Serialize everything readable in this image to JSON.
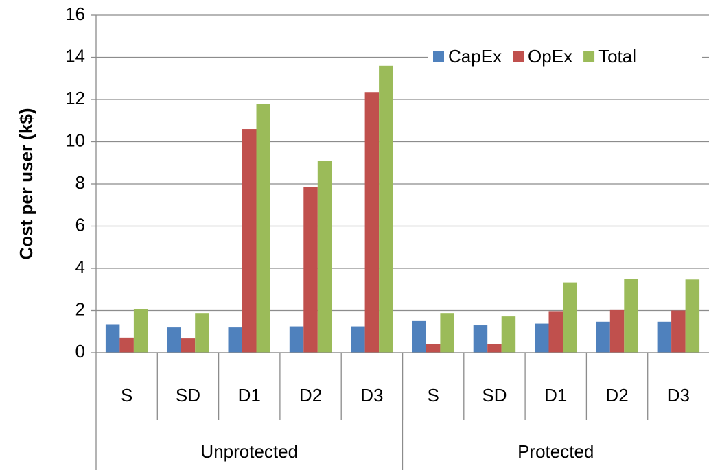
{
  "chart_data": {
    "type": "bar",
    "y_label": "Cost per user (k$)",
    "groups": [
      {
        "name": "Unprotected",
        "span": 5
      },
      {
        "name": "Protected",
        "span": 5
      }
    ],
    "categories": [
      "S",
      "SD",
      "D1",
      "D2",
      "D3",
      "S",
      "SD",
      "D1",
      "D2",
      "D3"
    ],
    "series": [
      {
        "name": "CapEx",
        "color": "#4f81bd",
        "values": [
          1.35,
          1.2,
          1.2,
          1.25,
          1.25,
          1.5,
          1.3,
          1.38,
          1.47,
          1.47
        ]
      },
      {
        "name": "OpEx",
        "color": "#c0504d",
        "values": [
          0.72,
          0.68,
          10.6,
          7.85,
          12.35,
          0.4,
          0.42,
          1.97,
          2.02,
          2.0
        ]
      },
      {
        "name": "Total",
        "color": "#9bbb59",
        "values": [
          2.05,
          1.88,
          11.8,
          9.1,
          13.6,
          1.88,
          1.72,
          3.33,
          3.5,
          3.47
        ]
      }
    ],
    "ylim": [
      0,
      16
    ],
    "yticks": [
      0,
      2,
      4,
      6,
      8,
      10,
      12,
      14,
      16
    ],
    "grid": true,
    "legend": "top-right"
  }
}
